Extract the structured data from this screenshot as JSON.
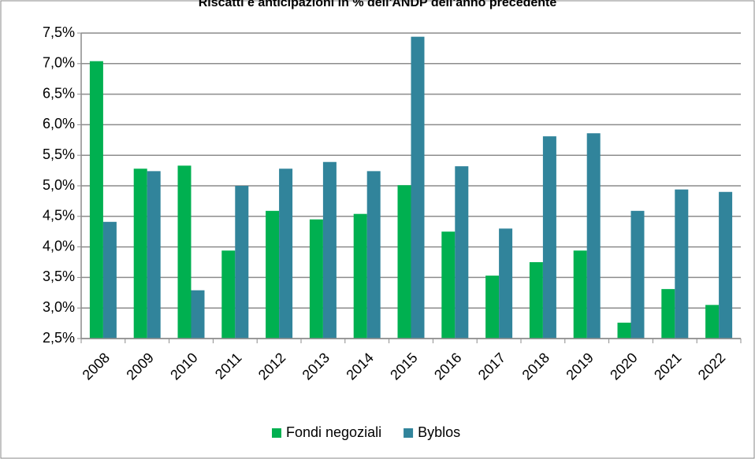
{
  "chart_data": {
    "type": "bar",
    "title": "Riscatti e anticipazioni in % dell'ANDP dell'anno precedente",
    "categories": [
      "2008",
      "2009",
      "2010",
      "2011",
      "2012",
      "2013",
      "2014",
      "2015",
      "2016",
      "2017",
      "2018",
      "2019",
      "2020",
      "2021",
      "2022"
    ],
    "series": [
      {
        "name": "Fondi negoziali",
        "color": "#00b050",
        "values": [
          7.04,
          5.28,
          5.33,
          3.94,
          4.59,
          4.45,
          4.54,
          5.01,
          4.25,
          3.53,
          3.75,
          3.94,
          2.76,
          3.31,
          3.05
        ]
      },
      {
        "name": "Byblos",
        "color": "#31849b",
        "values": [
          4.41,
          5.24,
          3.29,
          5.0,
          5.28,
          5.39,
          5.24,
          7.44,
          5.32,
          4.3,
          5.81,
          5.86,
          4.59,
          4.94,
          4.9
        ]
      }
    ],
    "ylim": [
      2.5,
      7.5
    ],
    "yticks": [
      {
        "value": 2.5,
        "label": "2,5%"
      },
      {
        "value": 3,
        "label": "3,0%"
      },
      {
        "value": 3.5,
        "label": "3,5%"
      },
      {
        "value": 4,
        "label": "4,0%"
      },
      {
        "value": 4.5,
        "label": "4,5%"
      },
      {
        "value": 5,
        "label": "5,0%"
      },
      {
        "value": 5.5,
        "label": "5,5%"
      },
      {
        "value": 6,
        "label": "6,0%"
      },
      {
        "value": 6.5,
        "label": "6,5%"
      },
      {
        "value": 7,
        "label": "7,0%"
      },
      {
        "value": 7.5,
        "label": "7,5%"
      }
    ],
    "grid": true,
    "legend": "bottom"
  }
}
